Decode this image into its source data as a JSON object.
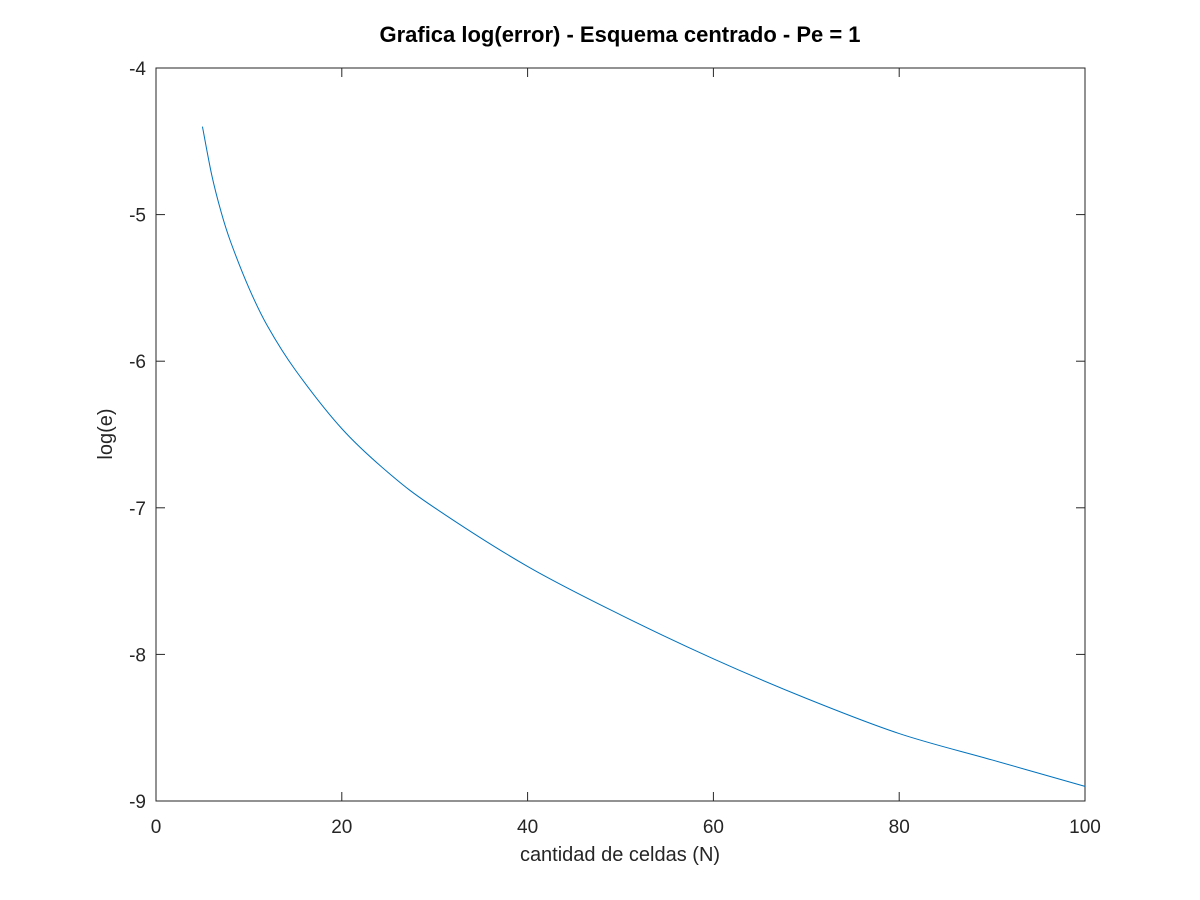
{
  "chart_data": {
    "type": "line",
    "title": "Grafica log(error) - Esquema centrado - Pe = 1",
    "xlabel": "cantidad de celdas (N)",
    "ylabel": "log(e)",
    "xlim": [
      0,
      100
    ],
    "ylim": [
      -9,
      -4
    ],
    "xticks": [
      0,
      20,
      40,
      60,
      80,
      100
    ],
    "yticks": [
      -4,
      -5,
      -6,
      -7,
      -8,
      -9
    ],
    "xtick_labels": [
      "0",
      "20",
      "40",
      "60",
      "80",
      "100"
    ],
    "ytick_labels": [
      "-4",
      "-5",
      "-6",
      "-7",
      "-8",
      "-9"
    ],
    "grid": false,
    "series": [
      {
        "color": "#0072bd",
        "x": [
          5,
          6,
          7,
          8,
          10,
          12,
          15,
          20,
          25,
          30,
          40,
          50,
          60,
          70,
          80,
          90,
          100
        ],
        "y": [
          -4.4,
          -4.73,
          -4.98,
          -5.18,
          -5.5,
          -5.76,
          -6.06,
          -6.46,
          -6.76,
          -7.0,
          -7.4,
          -7.73,
          -8.03,
          -8.3,
          -8.54,
          -8.72,
          -8.9
        ]
      }
    ]
  }
}
